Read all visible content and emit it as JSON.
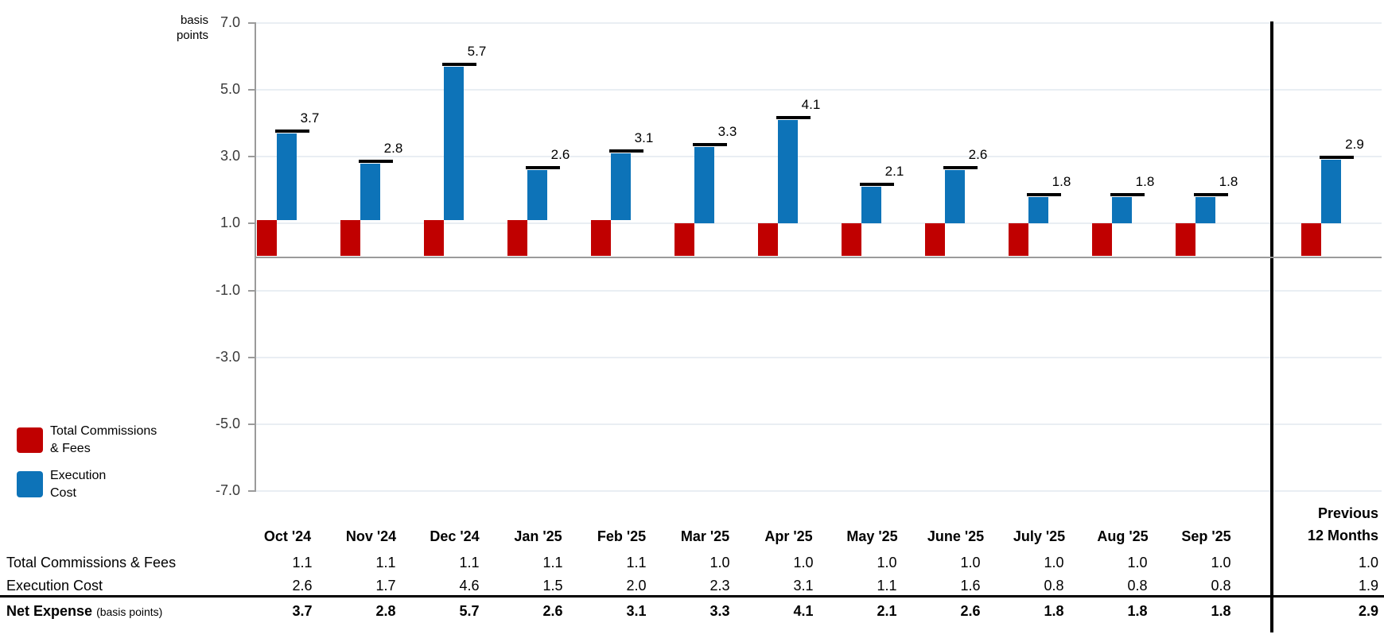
{
  "chart_data": {
    "type": "bar",
    "title": "",
    "unit_label_line1": "basis",
    "unit_label_line2": "points",
    "categories": [
      "Oct '24",
      "Nov '24",
      "Dec '24",
      "Jan '25",
      "Feb '25",
      "Mar '25",
      "Apr '25",
      "May '25",
      "June '25",
      "July '25",
      "Aug '25",
      "Sep '25",
      "Previous 12 Months"
    ],
    "series": [
      {
        "name": "Total Commissions & Fees",
        "color": "#C00000",
        "values": [
          1.1,
          1.1,
          1.1,
          1.1,
          1.1,
          1.0,
          1.0,
          1.0,
          1.0,
          1.0,
          1.0,
          1.0,
          1.0
        ]
      },
      {
        "name": "Execution Cost",
        "color": "#0D73B8",
        "values": [
          2.6,
          1.7,
          4.6,
          1.5,
          2.0,
          2.3,
          3.1,
          1.1,
          1.6,
          0.8,
          0.8,
          0.8,
          1.9
        ]
      }
    ],
    "net_totals": [
      3.7,
      2.8,
      5.7,
      2.6,
      3.1,
      3.3,
      4.1,
      2.1,
      2.6,
      1.8,
      1.8,
      1.8,
      2.9
    ],
    "yticks": [
      7.0,
      5.0,
      3.0,
      1.0,
      -1.0,
      -3.0,
      -5.0,
      -7.0
    ],
    "ylim": [
      -7.0,
      7.0
    ],
    "grid": true,
    "legend_position": "bottom-left",
    "bar_style": "red bar rises from 0 to commissions value; blue bar floats from commissions value up to net total; black dash marks the net total"
  },
  "legend": {
    "items": [
      {
        "line1": "Total Commissions",
        "line2": "& Fees",
        "color": "#C00000"
      },
      {
        "line1": "Execution",
        "line2": "Cost",
        "color": "#0D73B8"
      }
    ]
  },
  "table": {
    "prev_header_line1": "Previous",
    "prev_header_line2": "12 Months",
    "row_labels": [
      "Total Commissions & Fees",
      "Execution Cost"
    ],
    "net_label": "Net Expense",
    "net_sublabel": "(basis points)"
  },
  "colors": {
    "commissions_red": "#C00000",
    "execution_blue": "#0D73B8",
    "gridline": "#E9EEF3",
    "axis_gray": "#9B9B9B",
    "separator_black": "#000000",
    "total_marker": "#000000"
  }
}
